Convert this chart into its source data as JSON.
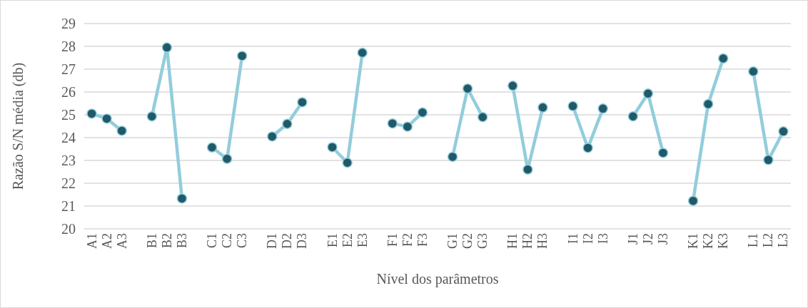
{
  "chart_data": {
    "type": "line",
    "xlabel": "Nível dos parâmetros",
    "ylabel": "Razão S/N média (db)",
    "categories": [
      "A1",
      "A2",
      "A3",
      null,
      "B1",
      "B2",
      "B3",
      null,
      "C1",
      "C2",
      "C3",
      null,
      "D1",
      "D2",
      "D3",
      null,
      "E1",
      "E2",
      "E3",
      null,
      "F1",
      "F2",
      "F3",
      null,
      "G1",
      "G2",
      "G3",
      null,
      "H1",
      "H2",
      "H3",
      null,
      "I1",
      "I2",
      "I3",
      null,
      "J1",
      "J2",
      "J3",
      null,
      "K1",
      "K2",
      "K3",
      null,
      "L1",
      "L2",
      "L3"
    ],
    "series": [
      {
        "color": "#92cddc",
        "values": [
          25.05,
          24.83,
          24.3,
          null,
          24.93,
          27.95,
          21.33,
          null,
          23.57,
          23.07,
          27.58,
          null,
          24.05,
          24.6,
          25.55,
          null,
          23.58,
          22.9,
          27.72,
          null,
          24.62,
          24.48,
          25.1,
          null,
          23.16,
          26.15,
          24.9,
          null,
          26.27,
          22.6,
          25.32,
          null,
          25.38,
          23.55,
          25.27,
          null,
          24.93,
          25.93,
          23.33,
          null,
          21.23,
          25.47,
          27.47,
          null,
          26.9,
          23.02,
          24.27
        ]
      }
    ],
    "ylim": [
      20,
      29
    ],
    "yticks": [
      20,
      21,
      22,
      23,
      24,
      25,
      26,
      27,
      28,
      29
    ],
    "grid": "y",
    "marker": "circle",
    "line_style": "solid"
  }
}
